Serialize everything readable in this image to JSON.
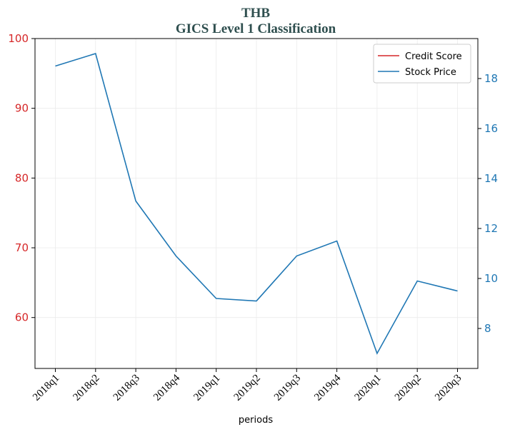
{
  "chart_data": {
    "type": "line",
    "title": "THB",
    "subtitle": "GICS Level 1 Classification",
    "x_label": "periods",
    "categories": [
      "2018q1",
      "2018q2",
      "2018q3",
      "2018q4",
      "2019q1",
      "2019q2",
      "2019q3",
      "2019q4",
      "2020q1",
      "2020q2",
      "2020q3"
    ],
    "series": [
      {
        "name": "Credit Score",
        "color": "#d62728",
        "values": [
          null,
          null,
          null,
          null,
          null,
          null,
          null,
          null,
          null,
          null,
          null
        ]
      },
      {
        "name": "Stock Price",
        "color": "#1f77b4",
        "axis": "y2",
        "values": [
          18.5,
          19.0,
          13.1,
          10.9,
          9.2,
          9.1,
          10.9,
          11.5,
          7.0,
          9.9,
          9.5
        ]
      }
    ],
    "ylim": [
      52.7,
      100
    ],
    "yticks": [
      60,
      70,
      80,
      90,
      100
    ],
    "y2lim": [
      6.4,
      19.6
    ],
    "y2ticks": [
      8,
      10,
      12,
      14,
      16,
      18
    ],
    "grid": true,
    "legend": "upper right"
  }
}
